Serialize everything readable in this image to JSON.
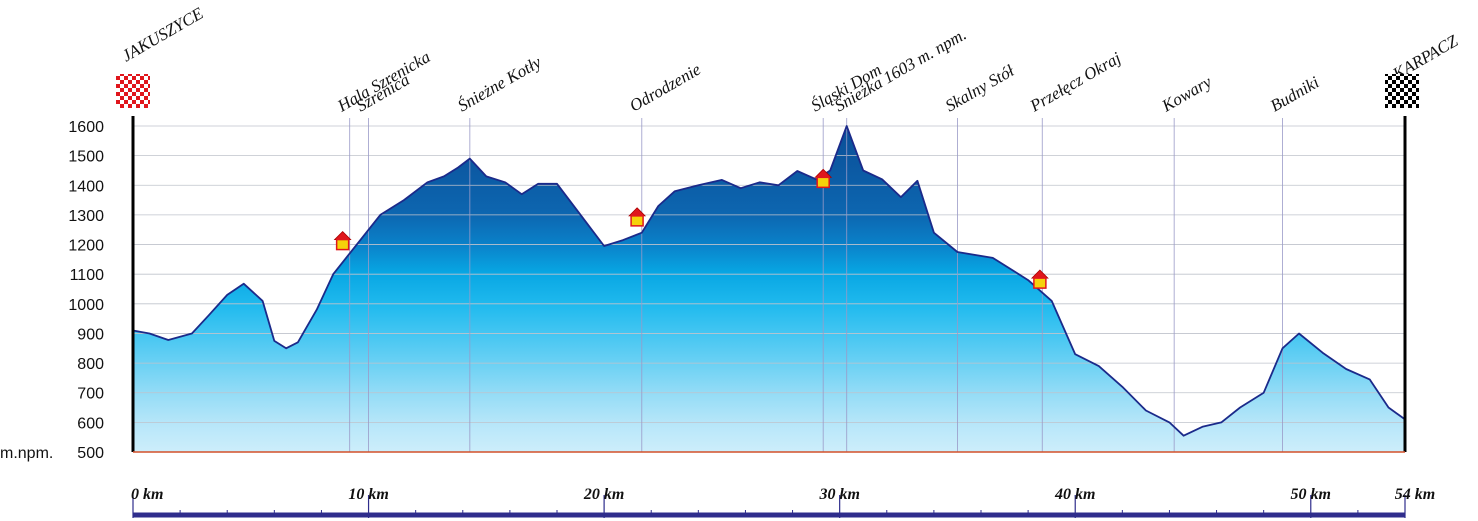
{
  "chart_data": {
    "type": "area",
    "ylabel": "m.npm.",
    "ylim": [
      500,
      1600
    ],
    "yticks": [
      1600,
      1500,
      1400,
      1300,
      1200,
      1100,
      1000,
      900,
      800,
      700,
      600,
      500
    ],
    "xlim": [
      0,
      54
    ],
    "xticks": [
      {
        "value": 0,
        "label": "0 km"
      },
      {
        "value": 10,
        "label": "10 km"
      },
      {
        "value": 20,
        "label": "20 km"
      },
      {
        "value": 30,
        "label": "30 km"
      },
      {
        "value": 40,
        "label": "40 km"
      },
      {
        "value": 50,
        "label": "50 km"
      },
      {
        "value": 54,
        "label": "54 km"
      }
    ],
    "start": {
      "label": "JAKUSZYCE",
      "km": 0
    },
    "finish": {
      "label": "KARPACZ",
      "km": 54
    },
    "waypoints": [
      {
        "label": "Hala Szrenicka",
        "km": 9.2
      },
      {
        "label": "Szrenica",
        "km": 10.0
      },
      {
        "label": "Śnieżne Kotły",
        "km": 14.3
      },
      {
        "label": "Odrodzenie",
        "km": 21.6
      },
      {
        "label": "Śląski Dom",
        "km": 29.3
      },
      {
        "label": "Śnieżka 1603 m. npm.",
        "km": 30.3
      },
      {
        "label": "Skalny Stół",
        "km": 35.0
      },
      {
        "label": "Przełęcz Okraj",
        "km": 38.6
      },
      {
        "label": "Kowary",
        "km": 44.2
      },
      {
        "label": "Budniki",
        "km": 48.8
      }
    ],
    "shelters": [
      {
        "km": 8.9,
        "elevation": 1210
      },
      {
        "km": 21.4,
        "elevation": 1290
      },
      {
        "km": 29.3,
        "elevation": 1420
      },
      {
        "km": 38.5,
        "elevation": 1080
      }
    ],
    "x": [
      0,
      0.7,
      1.5,
      2.5,
      3.2,
      4.0,
      4.7,
      5.5,
      6.0,
      6.5,
      7.0,
      7.8,
      8.5,
      9.2,
      9.8,
      10.5,
      11.5,
      12.5,
      13.2,
      13.8,
      14.3,
      15.0,
      15.8,
      16.5,
      17.2,
      18.0,
      19.0,
      20.0,
      20.8,
      21.6,
      22.3,
      23.0,
      24.0,
      25.0,
      25.8,
      26.6,
      27.4,
      28.2,
      29.0,
      29.6,
      30.3,
      31.0,
      31.8,
      32.6,
      33.3,
      34.0,
      35.0,
      36.5,
      38.0,
      39.0,
      40.0,
      41.0,
      42.0,
      43.0,
      44.0,
      44.6,
      45.4,
      46.2,
      47.0,
      48.0,
      48.8,
      49.5,
      50.5,
      51.5,
      52.5,
      53.3,
      54.0
    ],
    "y": [
      910,
      900,
      878,
      900,
      960,
      1030,
      1068,
      1010,
      875,
      850,
      870,
      980,
      1100,
      1170,
      1230,
      1300,
      1350,
      1410,
      1430,
      1460,
      1490,
      1430,
      1410,
      1370,
      1405,
      1405,
      1300,
      1195,
      1215,
      1240,
      1330,
      1380,
      1400,
      1418,
      1390,
      1410,
      1400,
      1448,
      1420,
      1450,
      1600,
      1450,
      1420,
      1360,
      1415,
      1240,
      1175,
      1155,
      1080,
      1010,
      830,
      790,
      720,
      640,
      600,
      555,
      585,
      600,
      650,
      700,
      850,
      900,
      835,
      780,
      745,
      650,
      610
    ]
  }
}
